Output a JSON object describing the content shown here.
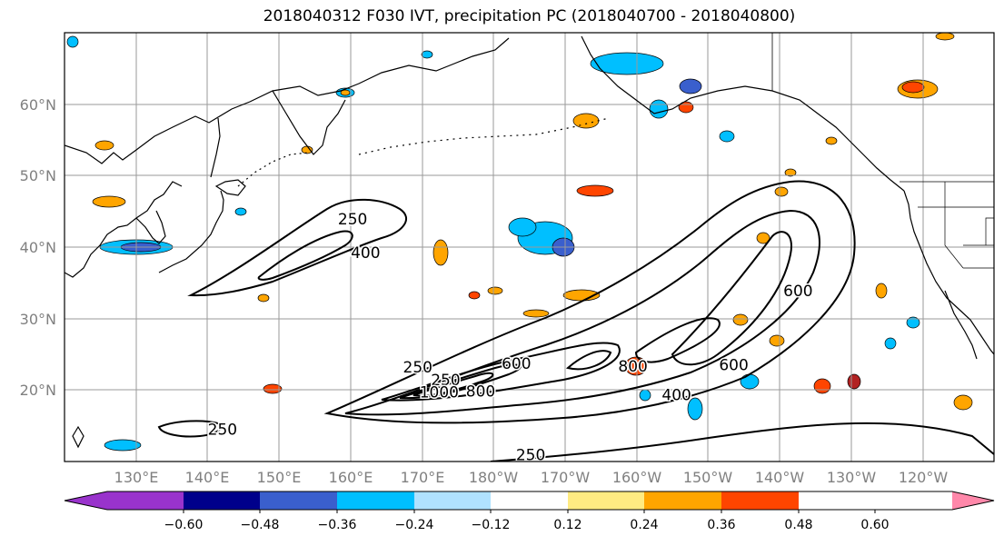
{
  "title": "2018040312 F030 IVT, precipitation PC (2018040700 - 2018040800)",
  "latitude_labels": [
    "60°N",
    "50°N",
    "40°N",
    "30°N",
    "20°N"
  ],
  "longitude_labels": [
    "130°E",
    "140°E",
    "150°E",
    "160°E",
    "170°E",
    "180°W",
    "170°W",
    "160°W",
    "150°W",
    "140°W",
    "130°W",
    "120°W"
  ],
  "ivt_contours": {
    "color": "#000000",
    "labels": [
      {
        "text": "250",
        "lon": 160.3,
        "lat": 43.8
      },
      {
        "text": "400",
        "lon": 162.1,
        "lat": 39.1
      },
      {
        "text": "250",
        "lon": 169.4,
        "lat": 23.1
      },
      {
        "text": "250",
        "lon": 173.3,
        "lat": 21.3
      },
      {
        "text": "600",
        "lon": 183.2,
        "lat": 23.6
      },
      {
        "text": "1000",
        "lon": 172.4,
        "lat": 19.6
      },
      {
        "text": "800",
        "lon": 178.2,
        "lat": 19.7
      },
      {
        "text": "800",
        "lon": 199.5,
        "lat": 23.2
      },
      {
        "text": "400",
        "lon": 205.6,
        "lat": 19.2
      },
      {
        "text": "600",
        "lon": 213.6,
        "lat": 23.4
      },
      {
        "text": "600",
        "lon": 222.6,
        "lat": 33.8
      },
      {
        "text": "250",
        "lon": 142.1,
        "lat": 14.4
      },
      {
        "text": "250",
        "lon": 185.2,
        "lat": 10.8
      }
    ]
  },
  "precip_pc_colorbar": {
    "tick_labels": [
      "−0.60",
      "−0.48",
      "−0.36",
      "−0.24",
      "−0.12",
      "0.12",
      "0.24",
      "0.36",
      "0.48",
      "0.60"
    ],
    "colors": [
      "#9933cc",
      "#00008b",
      "#3a5fcd",
      "#00bfff",
      "#b0e2ff",
      "#ffffff",
      "#ffeb82",
      "#ffa500",
      "#ff4500",
      "#b22222",
      "#ff88aa"
    ]
  }
}
